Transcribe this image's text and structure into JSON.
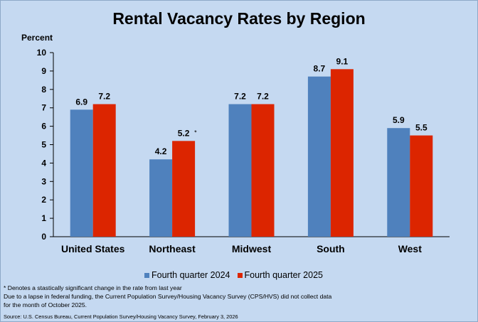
{
  "chart_data": {
    "type": "bar",
    "title": "Rental Vacancy Rates by Region",
    "ylabel": "Percent",
    "xlabel": "",
    "ylim": [
      0,
      10
    ],
    "yticks": [
      0,
      1,
      2,
      3,
      4,
      5,
      6,
      7,
      8,
      9,
      10
    ],
    "categories": [
      "United States",
      "Northeast",
      "Midwest",
      "South",
      "West"
    ],
    "series": [
      {
        "name": "Fourth quarter 2024",
        "color": "#4f81bd",
        "values": [
          6.9,
          4.2,
          7.2,
          8.7,
          5.9
        ],
        "labels": [
          "6.9",
          "4.2",
          "7.2",
          "8.7",
          "5.9"
        ]
      },
      {
        "name": "Fourth quarter 2025",
        "color": "#dc2500",
        "values": [
          7.2,
          5.2,
          7.2,
          9.1,
          5.5
        ],
        "labels": [
          "7.2",
          "5.2",
          "7.2",
          "9.1",
          "5.5"
        ]
      }
    ],
    "significance_marks": [
      [
        false,
        false,
        false,
        false,
        false
      ],
      [
        false,
        true,
        false,
        false,
        false
      ]
    ],
    "significance_symbol": "*",
    "legend_position": "bottom-center",
    "grid": false
  },
  "footnotes": [
    "* Denotes a stastically significant change in the rate from last year",
    "Due to a lapse in federal funding, the Current Population Survey/Housing Vacancy Survey (CPS/HVS) did not collect data",
    "for the month of October 2025."
  ],
  "source": "Source: U.S. Census Bureau, Current Population Survey/Housing Vacancy Survey, February 3, 2026"
}
